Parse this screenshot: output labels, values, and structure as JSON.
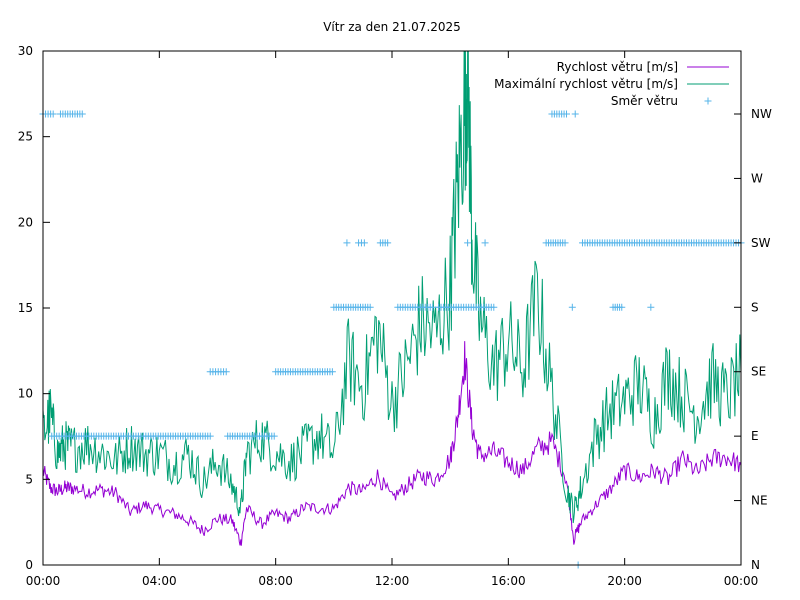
{
  "chart_data": {
    "type": "line",
    "title": "Vítr za den 21.07.2025",
    "x_tick_labels": [
      "00:00",
      "04:00",
      "08:00",
      "12:00",
      "16:00",
      "20:00",
      "00:00"
    ],
    "y_tick_labels": [
      "0",
      "5",
      "10",
      "15",
      "20",
      "25",
      "30"
    ],
    "y2_tick_labels": [
      "N",
      "NE",
      "E",
      "SE",
      "S",
      "SW",
      "W",
      "NW"
    ],
    "x_range_hours": [
      0,
      24
    ],
    "ylim": [
      0,
      30
    ],
    "y2_categories": [
      "N",
      "NE",
      "E",
      "SE",
      "S",
      "SW",
      "W",
      "NW"
    ],
    "grid": false,
    "legend_position": "top-right",
    "series": [
      {
        "name": "Rychlost větru [m/s]",
        "color": "#9400d3",
        "style": "line",
        "x_hours": [
          0,
          0.25,
          0.5,
          0.75,
          1,
          1.5,
          2,
          2.5,
          3,
          3.5,
          4,
          4.5,
          5,
          5.5,
          6,
          6.5,
          6.8,
          7,
          7.5,
          8,
          8.5,
          9,
          9.5,
          10,
          10.5,
          11,
          11.5,
          12,
          12.5,
          13,
          13.5,
          14,
          14.25,
          14.5,
          14.75,
          15,
          15.5,
          16,
          16.5,
          17,
          17.5,
          18,
          18.25,
          18.5,
          19,
          19.5,
          20,
          20.5,
          21,
          21.5,
          22,
          22.5,
          23,
          23.5,
          24
        ],
        "values": [
          5.5,
          4.5,
          4.3,
          4.5,
          4.5,
          4.3,
          4.4,
          4.2,
          3.1,
          3.5,
          3.2,
          3.0,
          2.6,
          2.0,
          2.7,
          2.6,
          1.3,
          3.3,
          2.4,
          3.0,
          2.7,
          3.4,
          3.3,
          3.3,
          4.5,
          4.3,
          5.2,
          3.9,
          4.6,
          5.2,
          5.0,
          6.2,
          8.5,
          12.1,
          8.1,
          6.4,
          6.6,
          6.0,
          5.5,
          6.8,
          7.2,
          5.0,
          1.5,
          2.5,
          3.5,
          4.4,
          5.5,
          5.1,
          5.5,
          5.0,
          6.2,
          5.4,
          6.2,
          6.3,
          5.8
        ]
      },
      {
        "name": "Maximální rychlost větru [m/s]",
        "color": "#009e73",
        "style": "line",
        "x_hours": [
          0,
          0.25,
          0.5,
          0.75,
          1,
          1.5,
          2,
          2.5,
          3,
          3.5,
          4,
          4.5,
          5,
          5.5,
          6,
          6.5,
          6.8,
          7,
          7.5,
          8,
          8.5,
          9,
          9.5,
          10,
          10.5,
          11,
          11.5,
          12,
          12.5,
          13,
          13.5,
          14,
          14.25,
          14.5,
          14.6,
          14.75,
          15,
          15.5,
          16,
          16.5,
          17,
          17.5,
          18,
          18.25,
          18.5,
          19,
          19.5,
          20,
          20.5,
          21,
          21.5,
          22,
          22.5,
          23,
          23.5,
          24
        ],
        "values": [
          7.6,
          8.8,
          6.5,
          7.0,
          6.8,
          7.1,
          6.6,
          6.1,
          7.0,
          6.5,
          6.5,
          5.9,
          6.5,
          4.8,
          6.1,
          4.7,
          3.2,
          6.4,
          7.5,
          6.6,
          6.0,
          6.8,
          7.6,
          6.5,
          12.0,
          10.3,
          13.8,
          9.4,
          11.6,
          14.2,
          13.4,
          16.2,
          22.0,
          27.0,
          29.4,
          19.2,
          14.4,
          11.5,
          13.1,
          11.4,
          15.8,
          10.1,
          4.5,
          3.1,
          4.5,
          7.5,
          9.0,
          9.6,
          10.6,
          8.5,
          11.3,
          9.8,
          8.8,
          10.8,
          9.7,
          11.2
        ]
      },
      {
        "name": "Směr větru",
        "color": "#56b4e9",
        "style": "points",
        "points": [
          {
            "from": 0.0,
            "to": 0.35,
            "dir": "NW"
          },
          {
            "from": 0.6,
            "to": 1.35,
            "dir": "NW"
          },
          {
            "from": 0.3,
            "to": 5.75,
            "dir": "E"
          },
          {
            "from": 5.75,
            "to": 6.3,
            "dir": "SE"
          },
          {
            "from": 6.35,
            "to": 7.95,
            "dir": "E"
          },
          {
            "from": 8.0,
            "to": 9.95,
            "dir": "SE"
          },
          {
            "from": 10.0,
            "to": 11.25,
            "dir": "S"
          },
          {
            "from": 10.45,
            "to": 10.45,
            "dir": "SW"
          },
          {
            "from": 10.85,
            "to": 11.05,
            "dir": "SW"
          },
          {
            "from": 11.6,
            "to": 11.85,
            "dir": "SW"
          },
          {
            "from": 12.2,
            "to": 13.4,
            "dir": "S"
          },
          {
            "from": 13.6,
            "to": 15.5,
            "dir": "S"
          },
          {
            "from": 14.6,
            "to": 14.6,
            "dir": "SW"
          },
          {
            "from": 15.2,
            "to": 15.2,
            "dir": "SW"
          },
          {
            "from": 17.3,
            "to": 17.95,
            "dir": "SW"
          },
          {
            "from": 18.55,
            "to": 24.0,
            "dir": "SW"
          },
          {
            "from": 17.5,
            "to": 18.0,
            "dir": "NW"
          },
          {
            "from": 18.3,
            "to": 18.3,
            "dir": "NW"
          },
          {
            "from": 18.2,
            "to": 18.2,
            "dir": "S"
          },
          {
            "from": 19.6,
            "to": 19.9,
            "dir": "S"
          },
          {
            "from": 20.9,
            "to": 20.9,
            "dir": "S"
          },
          {
            "from": 18.4,
            "to": 18.4,
            "dir": "N"
          }
        ]
      }
    ]
  }
}
